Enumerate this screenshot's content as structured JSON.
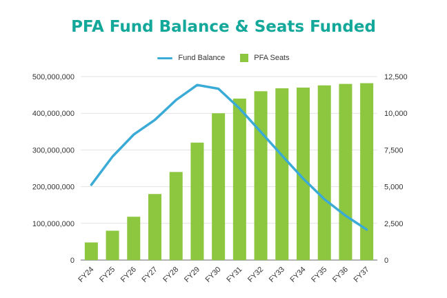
{
  "chart_data": {
    "type": "bar",
    "title": "PFA Fund Balance & Seats Funded",
    "categories": [
      "FY24",
      "FY25",
      "FY26",
      "FY27",
      "FY28",
      "FY29",
      "FY30",
      "FY31",
      "FY32",
      "FY33",
      "FY34",
      "FY35",
      "FY36",
      "FY37"
    ],
    "series": [
      {
        "name": "Fund Balance",
        "type": "line",
        "axis": "left",
        "color": "#3aaad7",
        "values": [
          205000000,
          282000000,
          342000000,
          382000000,
          436000000,
          477000000,
          467000000,
          413000000,
          349000000,
          285000000,
          222000000,
          166000000,
          121000000,
          83000000
        ]
      },
      {
        "name": "PFA Seats",
        "type": "bar",
        "axis": "right",
        "color": "#8dc63f",
        "values": [
          1200,
          2000,
          2950,
          4500,
          6000,
          8000,
          10000,
          11000,
          11500,
          11700,
          11750,
          11900,
          12000,
          12050
        ]
      }
    ],
    "y_left": {
      "min": 0,
      "max": 500000000,
      "ticks": [
        "0",
        "100,000,000",
        "200,000,000",
        "300,000,000",
        "400,000,000",
        "500,000,000"
      ]
    },
    "y_right": {
      "min": 0,
      "max": 12500,
      "ticks": [
        "0",
        "2,500",
        "5,000",
        "7,500",
        "10,000",
        "12,500"
      ]
    },
    "grid": true,
    "legend_position": "top-center"
  }
}
